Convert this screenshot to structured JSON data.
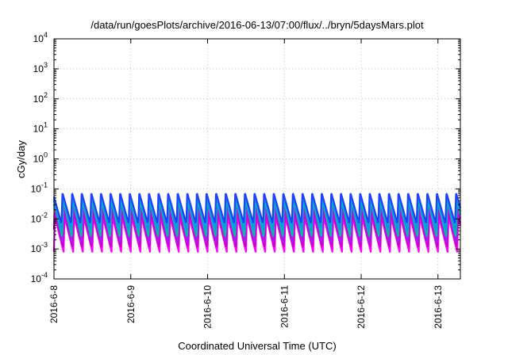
{
  "chart_data": {
    "type": "line",
    "title": "/data/run/goesPlots/archive/2016-06-13/07:00/flux/../bryn/5daysMars.plot",
    "xlabel": "Coordinated Universal Time (UTC)",
    "ylabel": "cGy/day",
    "y_scale": "log",
    "ylim": [
      0.0001,
      10000
    ],
    "xlim": [
      "2016-06-08 00:00",
      "2016-06-13 07:00"
    ],
    "x_ticks": [
      "2016-6-8",
      "2016-6-9",
      "2016-6-10",
      "2016-6-11",
      "2016-6-12",
      "2016-6-13"
    ],
    "y_ticks": [
      {
        "base": "10",
        "exp": "-4"
      },
      {
        "base": "10",
        "exp": "-3"
      },
      {
        "base": "10",
        "exp": "-2"
      },
      {
        "base": "10",
        "exp": "-1"
      },
      {
        "base": "10",
        "exp": "0"
      },
      {
        "base": "10",
        "exp": "1"
      },
      {
        "base": "10",
        "exp": "2"
      },
      {
        "base": "10",
        "exp": "3"
      },
      {
        "base": "10",
        "exp": "4"
      }
    ],
    "grid": true,
    "sawtooth_period_hours": 3,
    "series": [
      {
        "color": "#ff00ff",
        "peak": 0.012,
        "trough": 0.0008,
        "phase": 0.0
      },
      {
        "color": "#cc00cc",
        "peak": 0.018,
        "trough": 0.0011,
        "phase": 0.05
      },
      {
        "color": "#a020f0",
        "peak": 0.03,
        "trough": 0.0016,
        "phase": 0.1
      },
      {
        "color": "#00c0a0",
        "peak": 0.045,
        "trough": 0.0025,
        "phase": 0.14
      },
      {
        "color": "#00a0e0",
        "peak": 0.06,
        "trough": 0.004,
        "phase": 0.18
      },
      {
        "color": "#2040ff",
        "peak": 0.075,
        "trough": 0.007,
        "phase": 0.22
      }
    ]
  }
}
